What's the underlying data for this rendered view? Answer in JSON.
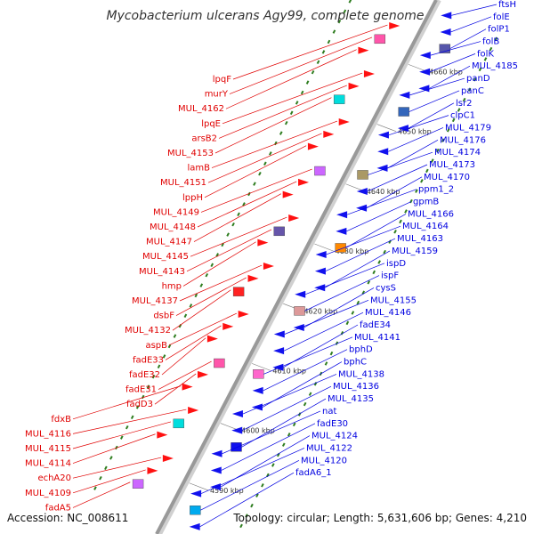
{
  "title": "Mycobacterium ulcerans Agy99, complete genome",
  "footer": {
    "accession": "Accession: NC_008611",
    "summary": "Topology: circular; Length: 5,631,606 bp; Genes: 4,210"
  },
  "colors": {
    "forward_label": "#e00000",
    "reverse_label": "#0000e0",
    "backbone": "#999999",
    "tick": "#2e7d1f",
    "gene_red": "#ff1111",
    "gene_blue": "#1111ee"
  },
  "scale": [
    {
      "label": "4590 kbp",
      "bp": 4590
    },
    {
      "label": "4600 kbp",
      "bp": 4600
    },
    {
      "label": "4610 kbp",
      "bp": 4610
    },
    {
      "label": "4620 kbp",
      "bp": 4620
    },
    {
      "label": "4630 kbp",
      "bp": 4630
    },
    {
      "label": "4640 kbp",
      "bp": 4640
    },
    {
      "label": "4650 kbp",
      "bp": 4650
    },
    {
      "label": "4660 kbp",
      "bp": 4660
    }
  ],
  "forward_genes": [
    "lpqF",
    "murY",
    "MUL_4162",
    "lpqE",
    "arsB2",
    "MUL_4153",
    "lamB",
    "MUL_4151",
    "lppH",
    "MUL_4149",
    "MUL_4148",
    "MUL_4147",
    "MUL_4145",
    "MUL_4143",
    "hmp",
    "MUL_4137",
    "dsbF",
    "MUL_4132",
    "aspB",
    "fadE33",
    "fadE32",
    "fadE31",
    "fadD3",
    "fdxB",
    "MUL_4116",
    "MUL_4115",
    "MUL_4114",
    "echA20",
    "MUL_4109",
    "fadA5"
  ],
  "reverse_genes": [
    "ftsH",
    "folE",
    "folP1",
    "folB",
    "folK",
    "MUL_4185",
    "panD",
    "panC",
    "lsr2",
    "clpC1",
    "MUL_4179",
    "MUL_4176",
    "MUL_4174",
    "MUL_4173",
    "MUL_4170",
    "ppm1_2",
    "gpmB",
    "MUL_4166",
    "MUL_4164",
    "MUL_4163",
    "MUL_4159",
    "ispD",
    "ispF",
    "cysS",
    "MUL_4155",
    "MUL_4146",
    "fadE34",
    "MUL_4141",
    "bphD",
    "bphC",
    "MUL_4138",
    "MUL_4136",
    "MUL_4135",
    "nat",
    "fadE30",
    "MUL_4124",
    "MUL_4122",
    "MUL_4120",
    "fadA6_1"
  ]
}
